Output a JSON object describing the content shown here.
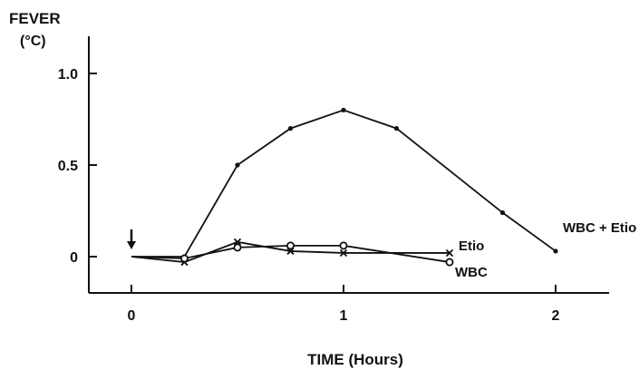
{
  "chart_data": {
    "type": "line",
    "ylabel_line1": "FEVER",
    "ylabel_line2": "(°C)",
    "xlabel": "TIME (Hours)",
    "x_ticks": [
      0,
      1,
      2
    ],
    "x_tick_labels": [
      "0",
      "1",
      "2"
    ],
    "y_ticks": [
      0,
      0.5,
      1.0
    ],
    "y_tick_labels": [
      "0",
      "0.5",
      "1.0"
    ],
    "xlim": [
      -0.1,
      2.25
    ],
    "ylim": [
      -0.2,
      1.2
    ],
    "injection_marker": {
      "x": 0,
      "label": ""
    },
    "series": [
      {
        "name": "WBC + Etio",
        "marker": "dot",
        "x": [
          0,
          0.25,
          0.5,
          0.75,
          1.0,
          1.25,
          1.75,
          2.0
        ],
        "y": [
          0,
          0.0,
          0.5,
          0.7,
          0.8,
          0.7,
          0.24,
          0.03
        ]
      },
      {
        "name": "Etio",
        "marker": "x",
        "x": [
          0,
          0.25,
          0.5,
          0.75,
          1.0,
          1.5
        ],
        "y": [
          0,
          -0.03,
          0.08,
          0.03,
          0.02,
          0.02
        ]
      },
      {
        "name": "WBC",
        "marker": "circle",
        "x": [
          0,
          0.25,
          0.5,
          0.75,
          1.0,
          1.5
        ],
        "y": [
          0,
          -0.01,
          0.05,
          0.06,
          0.06,
          -0.03
        ]
      }
    ]
  }
}
